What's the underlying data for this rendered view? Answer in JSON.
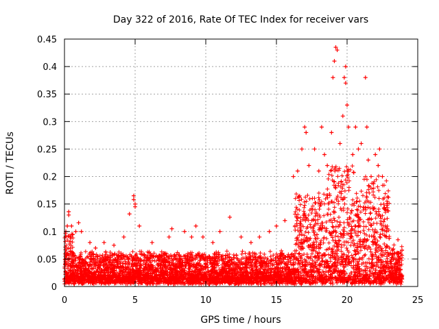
{
  "chart_data": {
    "type": "scatter",
    "title": "Day 322 of 2016, Rate Of TEC Index for receiver vars",
    "xlabel": "GPS time / hours",
    "ylabel": "ROTI / TECUs",
    "xlim": [
      0,
      25
    ],
    "ylim": [
      0,
      0.45
    ],
    "xticks": [
      0,
      5,
      10,
      15,
      20,
      25
    ],
    "xtick_labels": [
      "0",
      "5",
      "10",
      "15",
      "20",
      "25"
    ],
    "yticks": [
      0,
      0.05,
      0.1,
      0.15,
      0.2,
      0.25,
      0.3,
      0.35,
      0.4,
      0.45
    ],
    "ytick_labels": [
      "0",
      "0.05",
      "0.1",
      "0.15",
      "0.2",
      "0.25",
      "0.3",
      "0.35",
      "0.4",
      "0.45"
    ],
    "grid": true,
    "marker": "+",
    "color": "#ff0000",
    "series": [
      {
        "name": "ROTI",
        "description": "Dense scatter of ROTI values for all satellites; dense band 0-0.08 TECU from 0-16 h, enhanced 0-0.25 TECU from 16-23 h",
        "x": [
          0.1,
          0.2,
          0.3,
          0.3,
          0.5,
          0.8,
          1.0,
          1.2,
          1.8,
          2.2,
          2.8,
          3.5,
          4.2,
          4.6,
          4.9,
          4.9,
          5.0,
          5.0,
          5.3,
          6.2,
          7.4,
          7.6,
          8.5,
          9.0,
          9.3,
          9.8,
          10.5,
          11.0,
          11.7,
          12.5,
          13.2,
          13.8,
          14.5,
          15.0,
          15.6,
          16.2,
          16.5,
          16.8,
          17.0,
          17.1,
          17.3,
          17.7,
          18.0,
          18.2,
          18.4,
          18.6,
          18.9,
          19.0,
          19.1,
          19.2,
          19.3,
          19.5,
          19.7,
          19.8,
          19.9,
          19.9,
          20.0,
          20.1,
          20.4,
          20.6,
          20.8,
          21.0,
          21.3,
          21.4,
          21.5,
          21.7,
          22.0,
          22.2,
          22.3,
          22.5,
          22.6,
          22.8,
          23.0,
          23.5,
          23.6
        ],
        "y": [
          0.1,
          0.11,
          0.13,
          0.136,
          0.11,
          0.1,
          0.116,
          0.1,
          0.08,
          0.07,
          0.08,
          0.075,
          0.09,
          0.132,
          0.165,
          0.158,
          0.15,
          0.145,
          0.11,
          0.08,
          0.09,
          0.105,
          0.1,
          0.09,
          0.11,
          0.09,
          0.08,
          0.1,
          0.126,
          0.09,
          0.08,
          0.09,
          0.1,
          0.11,
          0.12,
          0.2,
          0.21,
          0.25,
          0.29,
          0.28,
          0.22,
          0.25,
          0.21,
          0.29,
          0.24,
          0.22,
          0.28,
          0.38,
          0.41,
          0.435,
          0.43,
          0.26,
          0.31,
          0.38,
          0.4,
          0.37,
          0.33,
          0.29,
          0.24,
          0.29,
          0.25,
          0.26,
          0.38,
          0.29,
          0.23,
          0.2,
          0.24,
          0.22,
          0.25,
          0.2,
          0.15,
          0.1,
          0.07,
          0.06,
          0.085
        ]
      }
    ]
  }
}
